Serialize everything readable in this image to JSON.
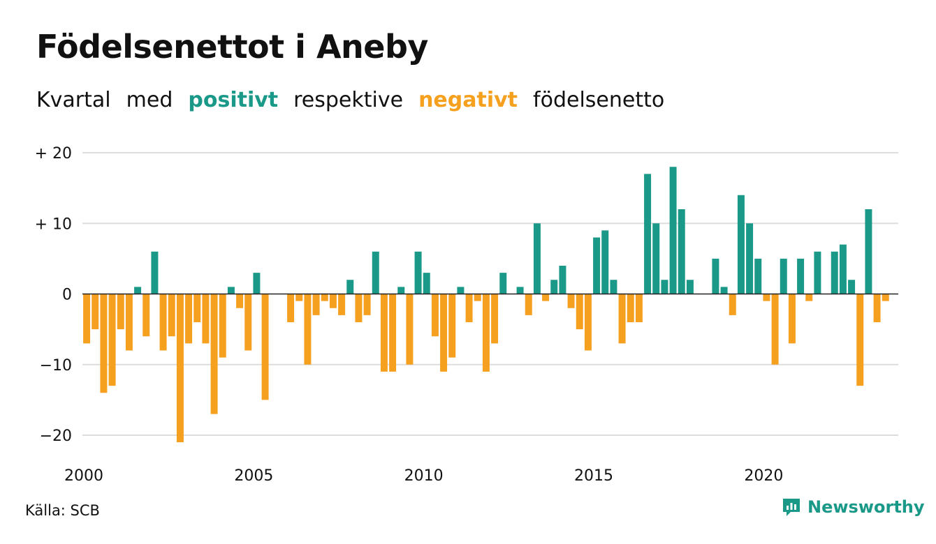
{
  "header": {
    "title": "Födelsenettot i Aneby",
    "subtitle_words": [
      "Kvartal",
      "med",
      "positivt",
      "respektive",
      "negativt",
      "födelsenetto"
    ]
  },
  "colors": {
    "positive": "#1a9988",
    "negative": "#f5a01f",
    "grid": "#dddddd",
    "zero_line": "#222222"
  },
  "footer": {
    "source": "Källa: SCB",
    "brand": "Newsworthy",
    "brand_icon": "newsworthy-logo-icon"
  },
  "chart_data": {
    "type": "bar",
    "title": "Födelsenettot i Aneby",
    "subtitle": "Kvartal med positivt respektive negativt födelsenetto",
    "x_start": "2000 Q1",
    "x_end": "2023 Q4",
    "xticks": [
      "2000",
      "2005",
      "2010",
      "2015",
      "2020"
    ],
    "yticks": [
      {
        "value": 20,
        "label": "+ 20"
      },
      {
        "value": 10,
        "label": "+ 10"
      },
      {
        "value": 0,
        "label": "0"
      },
      {
        "value": -10,
        "label": "−10"
      },
      {
        "value": -20,
        "label": "−20"
      }
    ],
    "ylim": [
      -20,
      20
    ],
    "grid": true,
    "values": [
      -7,
      -5,
      -14,
      -13,
      -5,
      -8,
      1,
      -6,
      6,
      -8,
      -6,
      -21,
      -7,
      -4,
      -7,
      -17,
      -9,
      1,
      -2,
      -8,
      3,
      -15,
      0,
      0,
      -4,
      -1,
      -10,
      -3,
      -1,
      -2,
      -3,
      2,
      -4,
      -3,
      6,
      -11,
      -11,
      1,
      -10,
      6,
      3,
      -6,
      -11,
      -9,
      1,
      -4,
      -1,
      -11,
      -7,
      3,
      0,
      1,
      -3,
      10,
      -1,
      2,
      4,
      -2,
      -5,
      -8,
      8,
      9,
      2,
      -7,
      -4,
      -4,
      17,
      10,
      2,
      18,
      12,
      2,
      0,
      0,
      5,
      1,
      -3,
      14,
      10,
      5,
      -1,
      -10,
      5,
      -7,
      5,
      -1,
      6,
      0,
      6,
      7,
      2,
      -13,
      12,
      -4,
      -1,
      0
    ]
  }
}
